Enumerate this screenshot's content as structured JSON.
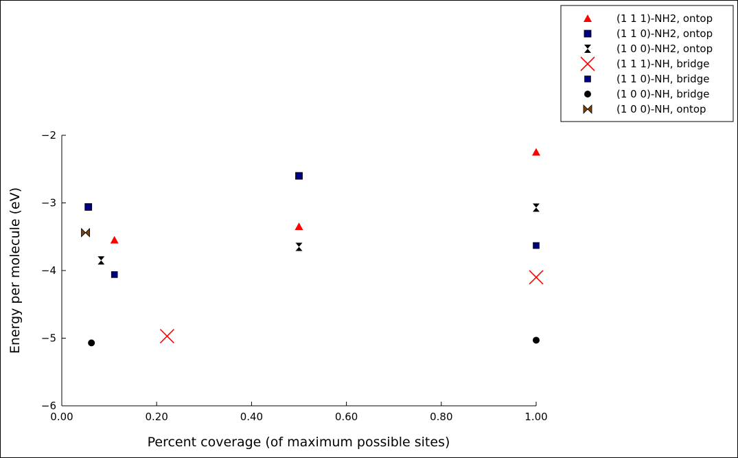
{
  "chart_data": {
    "type": "scatter",
    "title": "",
    "xlabel": "Percent coverage (of maximum possible sites)",
    "ylabel": "Energy per molecule (eV)",
    "xlim": [
      0,
      1
    ],
    "ylim": [
      -6,
      -2
    ],
    "xticks": [
      0,
      0.2,
      0.4,
      0.6,
      0.8,
      1.0
    ],
    "xtick_labels": [
      "0.00",
      "0.20",
      "0.40",
      "0.60",
      "0.80",
      "1.00"
    ],
    "yticks": [
      -6,
      -5,
      -4,
      -3,
      -2
    ],
    "ytick_labels": [
      "−6",
      "−5",
      "−4",
      "−3",
      "−2"
    ],
    "grid": false,
    "legend_position": "top-right outside",
    "series": [
      {
        "name": "(1 1 1)-NH2, ontop",
        "marker": "triangle",
        "color": "#ff0000",
        "points": [
          [
            0.111,
            -3.55
          ],
          [
            0.5,
            -3.35
          ],
          [
            1.0,
            -2.25
          ]
        ]
      },
      {
        "name": "(1 1 0)-NH2, ontop",
        "marker": "square",
        "color": "#00007f",
        "points": [
          [
            0.056,
            -3.06
          ],
          [
            0.5,
            -2.6
          ]
        ]
      },
      {
        "name": "(1 0 0)-NH2, ontop",
        "marker": "hourglass",
        "color": "#000000",
        "points": [
          [
            0.083,
            -3.85
          ],
          [
            0.5,
            -3.65
          ],
          [
            1.0,
            -3.07
          ]
        ]
      },
      {
        "name": "(1 1 1)-NH, bridge",
        "marker": "x",
        "color": "#ff0000",
        "points": [
          [
            0.222,
            -4.97
          ],
          [
            1.0,
            -4.1
          ]
        ]
      },
      {
        "name": "(1 1 0)-NH, bridge",
        "marker": "square-small",
        "color": "#00007f",
        "points": [
          [
            0.111,
            -4.06
          ],
          [
            1.0,
            -3.63
          ]
        ]
      },
      {
        "name": "(1 0 0)-NH, bridge",
        "marker": "circle",
        "color": "#000000",
        "points": [
          [
            0.0625,
            -5.07
          ],
          [
            1.0,
            -5.03
          ]
        ]
      },
      {
        "name": "(1 0 0)-NH, ontop",
        "marker": "bowtie",
        "color": "#7f3f00",
        "points": [
          [
            0.05,
            -3.44
          ]
        ]
      }
    ]
  }
}
